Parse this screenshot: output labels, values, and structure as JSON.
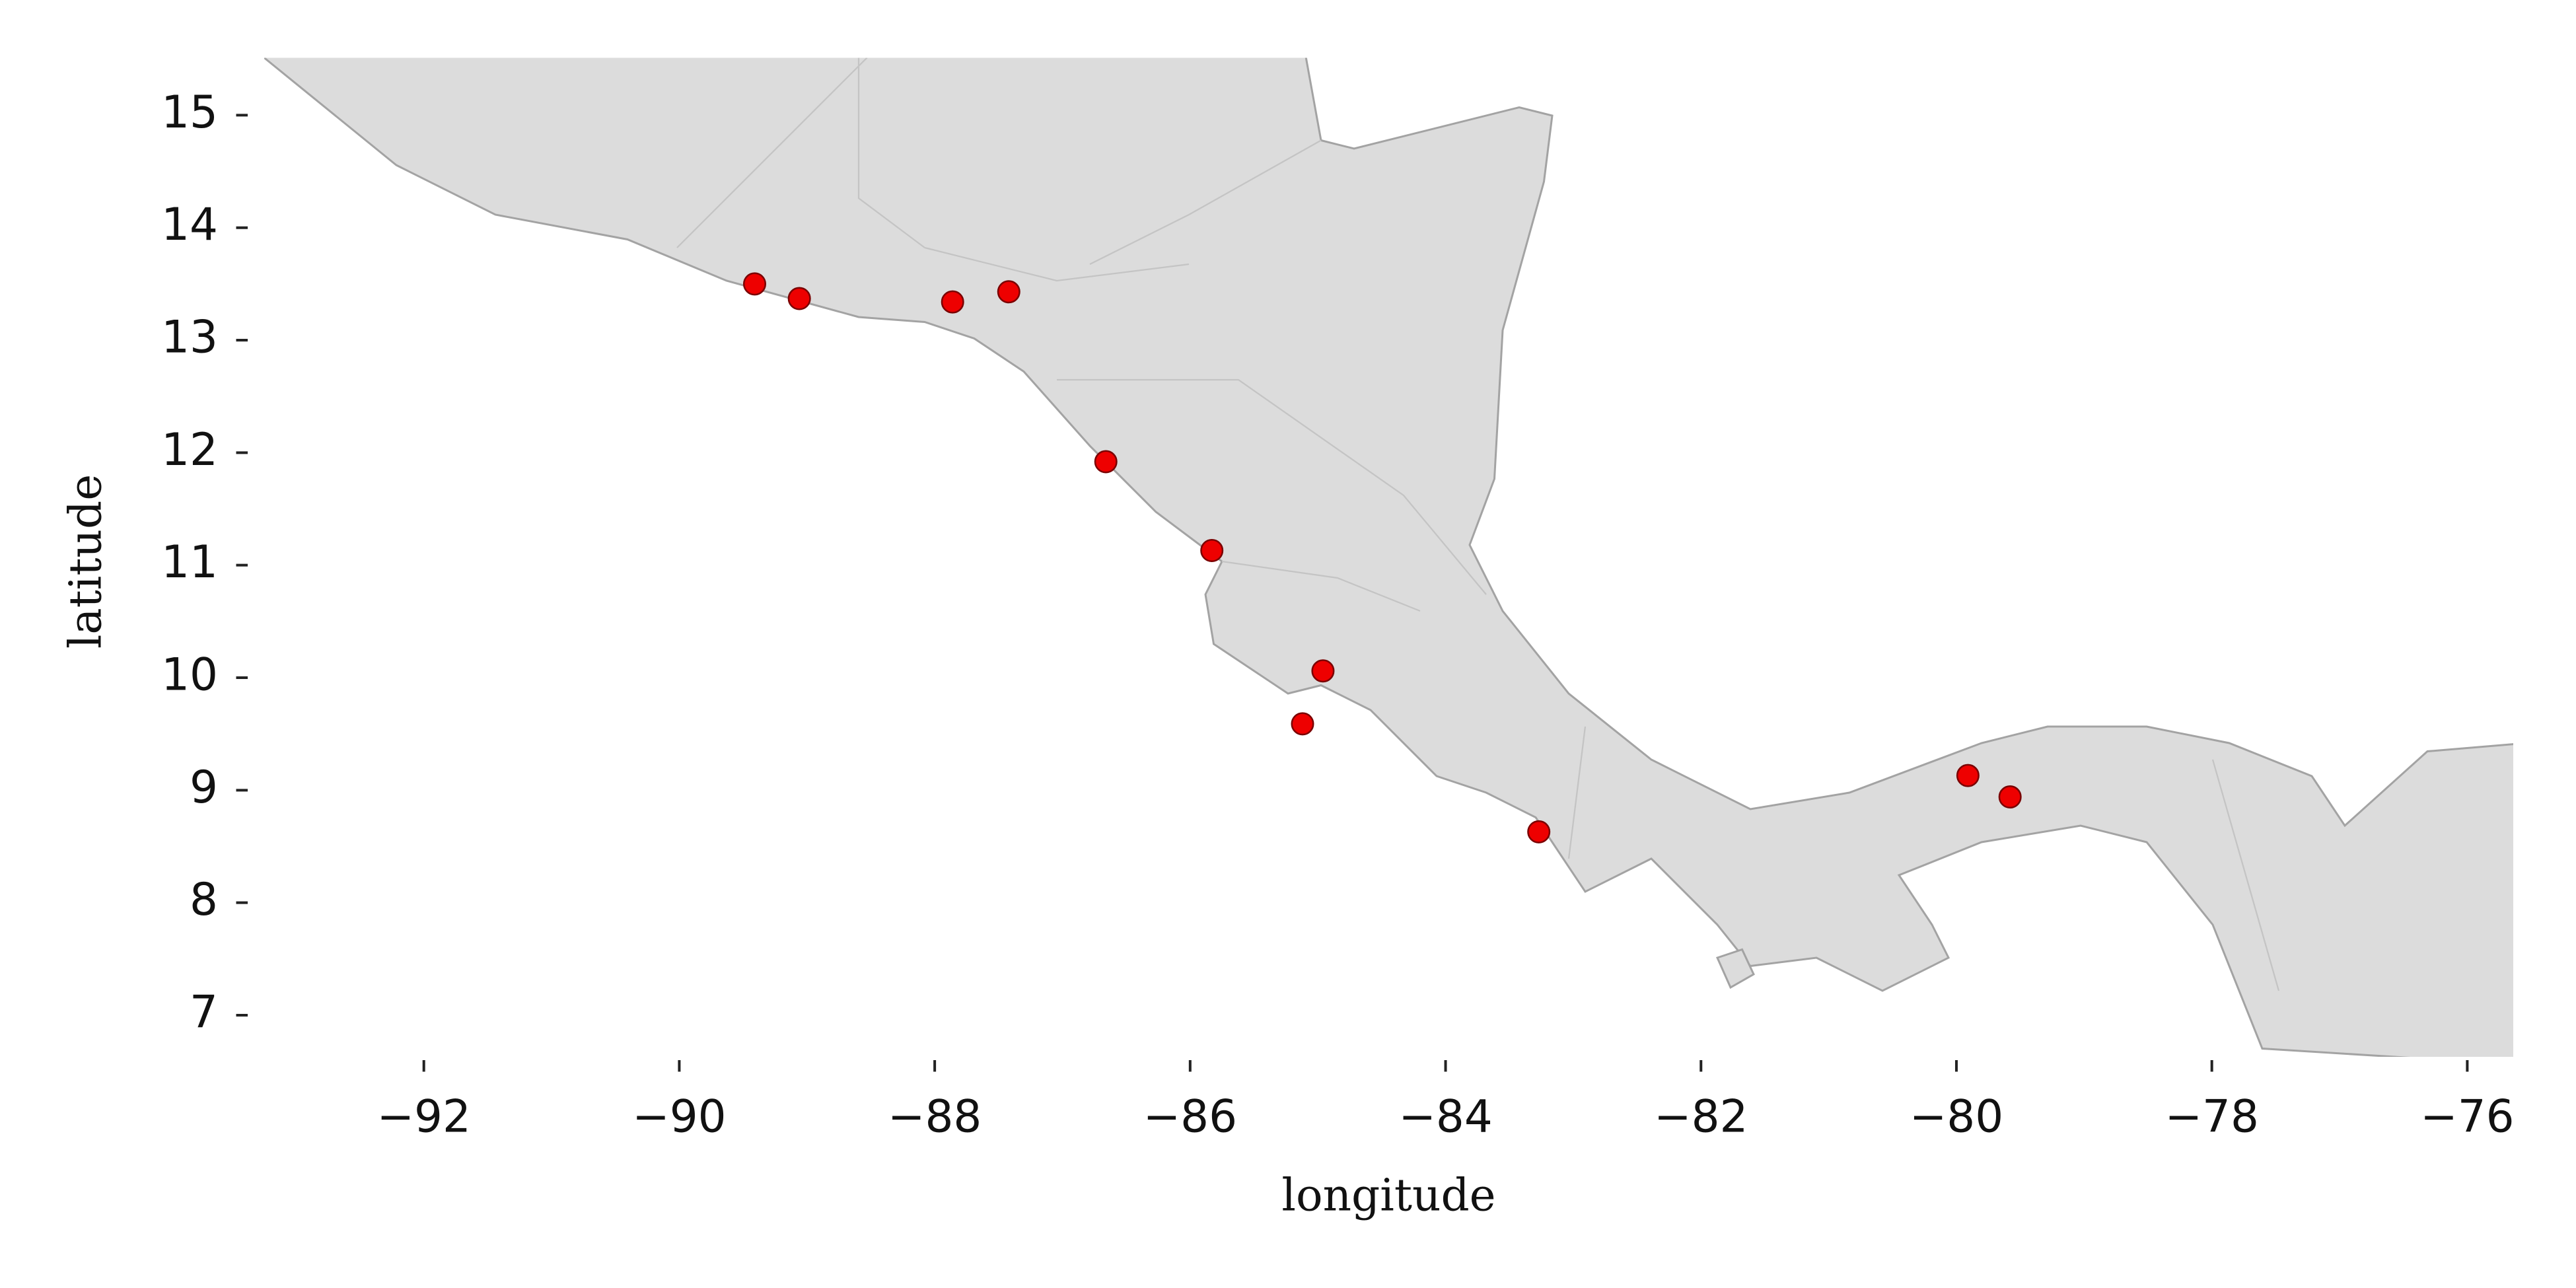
{
  "chart_data": {
    "type": "scatter",
    "x_label": "longitude",
    "y_label": "latitude",
    "x": [
      -89.41,
      -89.06,
      -87.86,
      -87.42,
      -86.66,
      -85.83,
      -84.96,
      -85.12,
      -83.27,
      -79.91,
      -79.58
    ],
    "values": [
      13.5,
      13.37,
      13.34,
      13.43,
      11.92,
      11.13,
      10.06,
      9.59,
      8.63,
      9.13,
      8.94
    ],
    "color": "#ee0000",
    "edge_color": "#7a0000",
    "xlim": [
      -93.25,
      -75.64
    ],
    "ylim": [
      6.63,
      15.51
    ],
    "xticks": [
      {
        "value": -92,
        "label": "−92"
      },
      {
        "value": -90,
        "label": "−90"
      },
      {
        "value": -88,
        "label": "−88"
      },
      {
        "value": -86,
        "label": "−86"
      },
      {
        "value": -84,
        "label": "−84"
      },
      {
        "value": -82,
        "label": "−82"
      },
      {
        "value": -80,
        "label": "−80"
      },
      {
        "value": -78,
        "label": "−78"
      },
      {
        "value": -76,
        "label": "−76"
      }
    ],
    "yticks": [
      7,
      8,
      9,
      10,
      11,
      12,
      13,
      14,
      15
    ],
    "grid": false
  }
}
